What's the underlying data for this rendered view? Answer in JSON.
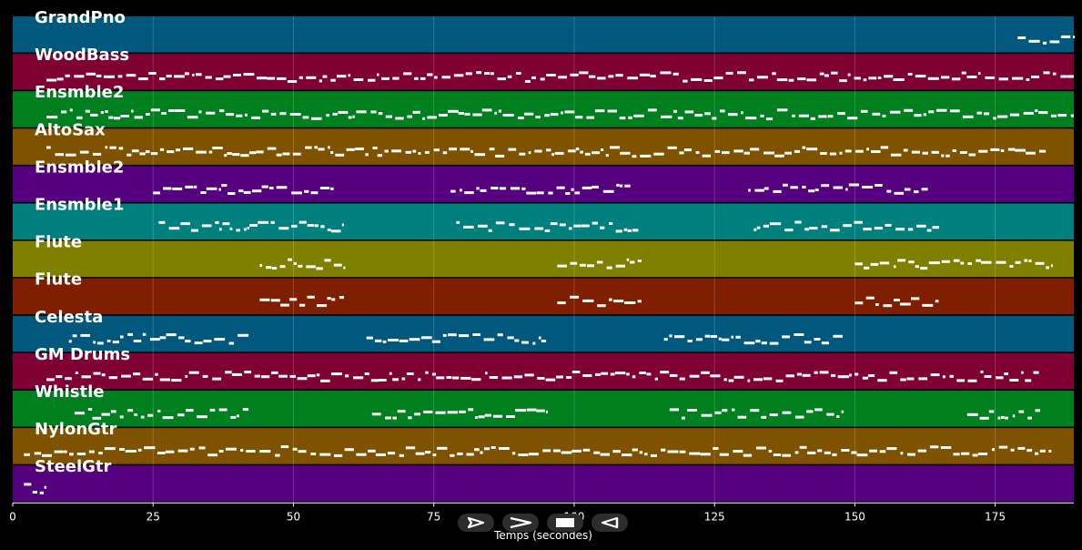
{
  "chart_data": {
    "type": "piano-roll",
    "xlabel": "Temps (secondes)",
    "xlim": [
      0,
      189
    ],
    "xticks": [
      0,
      25,
      50,
      75,
      100,
      125,
      150,
      175
    ],
    "grid": true,
    "tracks": [
      {
        "name": "GrandPno",
        "color": "#00587e",
        "segments": [
          [
            179,
            189
          ]
        ]
      },
      {
        "name": "WoodBass",
        "color": "#7f0033",
        "segments": [
          [
            6,
            189
          ]
        ]
      },
      {
        "name": "Ensmble2",
        "color": "#007f1e",
        "segments": [
          [
            6,
            189
          ]
        ]
      },
      {
        "name": "AltoSax",
        "color": "#7f5200",
        "segments": [
          [
            6,
            184
          ]
        ]
      },
      {
        "name": "Ensmble2",
        "color": "#55007f",
        "segments": [
          [
            25,
            57.5
          ],
          [
            78,
            110
          ],
          [
            131,
            163
          ]
        ]
      },
      {
        "name": "Ensmble1",
        "color": "#007f7f",
        "segments": [
          [
            26,
            59
          ],
          [
            79,
            112
          ],
          [
            132,
            165
          ]
        ]
      },
      {
        "name": "Flute",
        "color": "#7f7f00",
        "segments": [
          [
            44,
            59
          ],
          [
            97,
            112
          ],
          [
            150,
            185
          ]
        ]
      },
      {
        "name": "Flute",
        "color": "#7f1f00",
        "segments": [
          [
            44,
            59
          ],
          [
            97,
            112
          ],
          [
            150,
            165
          ]
        ]
      },
      {
        "name": "Celesta",
        "color": "#00587e",
        "segments": [
          [
            10,
            42
          ],
          [
            63,
            95
          ],
          [
            116,
            148
          ]
        ]
      },
      {
        "name": "GM Drums",
        "color": "#7f0033",
        "segments": [
          [
            6,
            183
          ]
        ]
      },
      {
        "name": "Whistle",
        "color": "#007f1e",
        "segments": [
          [
            11,
            42
          ],
          [
            64,
            95
          ],
          [
            117,
            148
          ],
          [
            170,
            183
          ]
        ]
      },
      {
        "name": "NylonGtr",
        "color": "#7f5200",
        "segments": [
          [
            2,
            185
          ]
        ]
      },
      {
        "name": "SteelGtr",
        "color": "#55007f",
        "segments": [
          [
            2,
            6
          ]
        ]
      }
    ]
  },
  "controls": [
    {
      "name": "play-icon"
    },
    {
      "name": "fast-forward-icon"
    },
    {
      "name": "stop-icon"
    },
    {
      "name": "rewind-icon"
    }
  ]
}
